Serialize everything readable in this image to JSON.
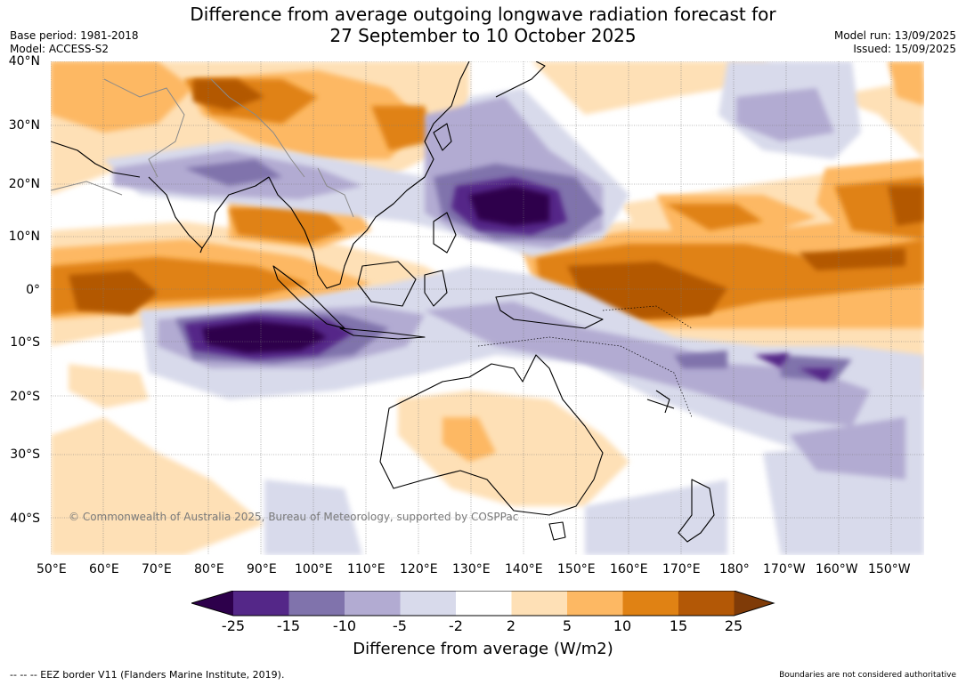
{
  "title_line1": "Difference from average outgoing longwave radiation forecast for",
  "title_line2": "27 September to 10 October 2025",
  "base_period": "Base period: 1981-2018",
  "model": "Model: ACCESS-S2",
  "model_run": "Model run: 13/09/2025",
  "issued": "Issued: 15/09/2025",
  "copyright": "© Commonwealth of Australia 2025, Bureau of Meteorology, supported by COSPPac",
  "lat_labels": [
    "40°N",
    "30°N",
    "20°N",
    "10°N",
    "0°",
    "10°S",
    "20°S",
    "30°S",
    "40°S"
  ],
  "lon_labels": [
    "50°E",
    "60°E",
    "70°E",
    "80°E",
    "90°E",
    "100°E",
    "110°E",
    "120°E",
    "130°E",
    "140°E",
    "150°E",
    "160°E",
    "170°E",
    "180°",
    "170°W",
    "160°W",
    "150°W"
  ],
  "colorbar": {
    "title": "Difference from average (W/m2)",
    "levels": [
      "-25",
      "-15",
      "-10",
      "-5",
      "-2",
      "2",
      "5",
      "10",
      "15",
      "25"
    ],
    "colors": [
      "#2d004b",
      "#542788",
      "#8073ac",
      "#b2abd2",
      "#d8daeb",
      "#ffffff",
      "#fee0b6",
      "#fdb863",
      "#e08214",
      "#b35806",
      "#7f3b08"
    ]
  },
  "footer_left": "--  --  -- EEZ border V11 (Flanders Marine Institute, 2019).",
  "footer_right": "Boundaries are not considered authoritative"
}
